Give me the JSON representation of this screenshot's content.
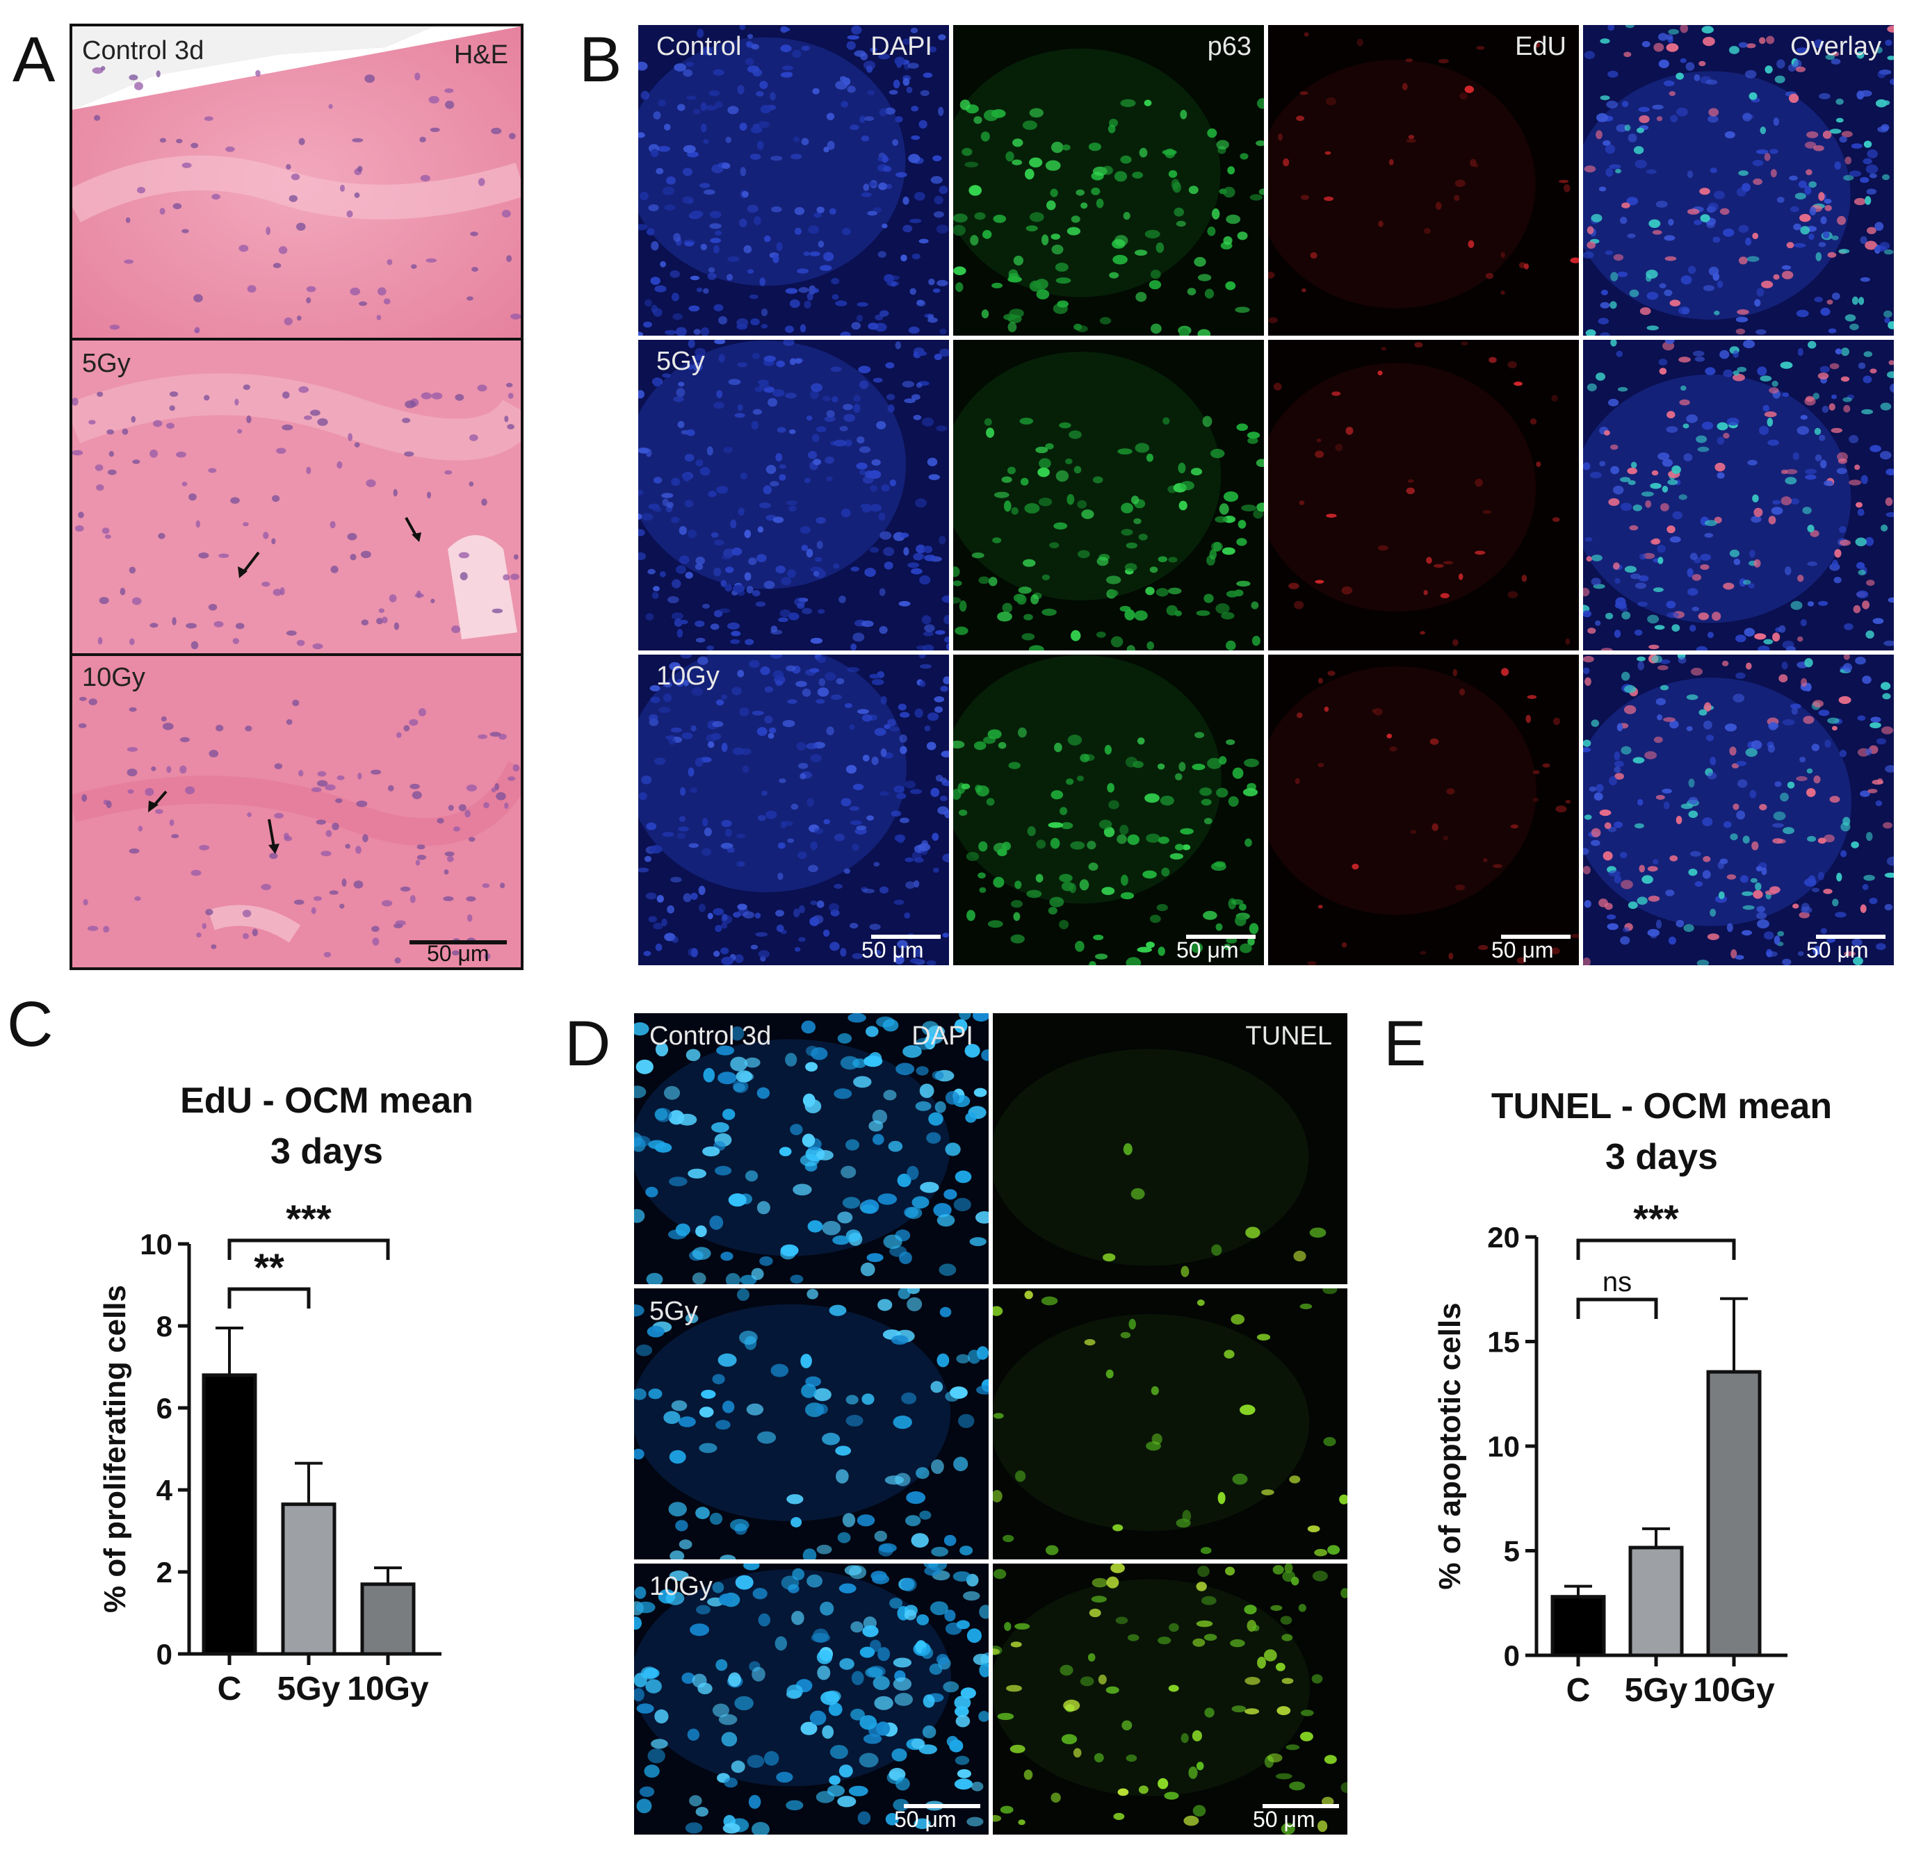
{
  "panels": {
    "a": {
      "letter": "A",
      "rows": [
        {
          "label": "Control 3d",
          "stain": "H&E"
        },
        {
          "label": "5Gy",
          "stain": ""
        },
        {
          "label": "10Gy",
          "stain": ""
        }
      ],
      "scale": "50 μm"
    },
    "b": {
      "letter": "B",
      "channels": [
        "DAPI",
        "p63",
        "EdU",
        "Overlay"
      ],
      "rows": [
        "Control",
        "5Gy",
        "10Gy"
      ],
      "scale": "50 μm"
    },
    "c": {
      "letter": "C"
    },
    "d": {
      "letter": "D",
      "channels": [
        "DAPI",
        "TUNEL"
      ],
      "rows": [
        "Control 3d",
        "5Gy",
        "10Gy"
      ],
      "scale": "50 μm"
    },
    "e": {
      "letter": "E"
    }
  },
  "colors": {
    "he_pink": "#e98aa6",
    "dapi_blue": "#1b2f9a",
    "p63_green": "#1fae3a",
    "edu_red": "#c0282c",
    "tunel_green": "#7fd322",
    "bar_c": "#000000",
    "bar_5gy": "#9da1a6",
    "bar_10gy": "#7a7d80"
  },
  "chart_data": [
    {
      "type": "bar",
      "title": "EdU - OCM mean",
      "subtitle": "3 days",
      "ylabel": "% of proliferating cells",
      "categories": [
        "C",
        "5Gy",
        "10Gy"
      ],
      "values": [
        6.8,
        3.65,
        1.7
      ],
      "errors": [
        1.15,
        1.0,
        0.4
      ],
      "ylim": [
        0,
        10
      ],
      "yticks": [
        "0",
        "2",
        "4",
        "6",
        "8",
        "10"
      ],
      "significance": [
        {
          "from": "C",
          "to": "5Gy",
          "label": "**"
        },
        {
          "from": "C",
          "to": "10Gy",
          "label": "***"
        }
      ]
    },
    {
      "type": "bar",
      "title": "TUNEL - OCM mean",
      "subtitle": "3 days",
      "ylabel": "% of apoptotic cells",
      "categories": [
        "C",
        "5Gy",
        "10Gy"
      ],
      "values": [
        2.8,
        5.15,
        13.55
      ],
      "errors": [
        0.5,
        0.9,
        3.5
      ],
      "ylim": [
        0,
        20
      ],
      "yticks": [
        "0",
        "5",
        "10",
        "15",
        "20"
      ],
      "significance": [
        {
          "from": "C",
          "to": "5Gy",
          "label": "ns"
        },
        {
          "from": "C",
          "to": "10Gy",
          "label": "***"
        }
      ]
    }
  ]
}
